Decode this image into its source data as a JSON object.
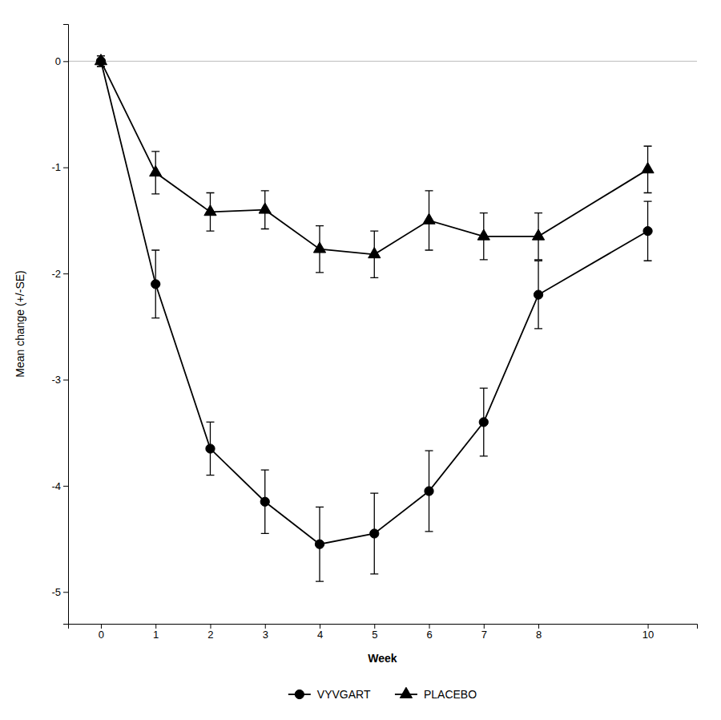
{
  "chart_data": {
    "type": "line",
    "xlabel": "Week",
    "ylabel": "Mean change (+/-SE)",
    "x": [
      0,
      1,
      2,
      3,
      4,
      5,
      6,
      7,
      8,
      10
    ],
    "series": [
      {
        "name": "VYVGART",
        "color": "#000000",
        "marker": "circle",
        "values": [
          0.0,
          -2.1,
          -3.65,
          -4.15,
          -4.55,
          -4.45,
          -4.05,
          -3.4,
          -2.2,
          -1.6
        ],
        "errors": [
          0.05,
          0.32,
          0.25,
          0.3,
          0.35,
          0.38,
          0.38,
          0.32,
          0.32,
          0.28
        ]
      },
      {
        "name": "PLACEBO",
        "color": "#000000",
        "marker": "triangle",
        "values": [
          0.0,
          -1.05,
          -1.42,
          -1.4,
          -1.77,
          -1.82,
          -1.5,
          -1.65,
          -1.65,
          -1.02
        ],
        "errors": [
          0.05,
          0.2,
          0.18,
          0.18,
          0.22,
          0.22,
          0.28,
          0.22,
          0.22,
          0.22
        ]
      }
    ],
    "xlim": [
      -0.6,
      10.9
    ],
    "ylim": [
      -5.3,
      0.35
    ],
    "xticks": [
      0,
      1,
      2,
      3,
      4,
      5,
      6,
      7,
      8,
      10
    ],
    "yticks": [
      0,
      -1,
      -2,
      -3,
      -4,
      -5
    ],
    "legend": "bottom",
    "grid": false
  }
}
